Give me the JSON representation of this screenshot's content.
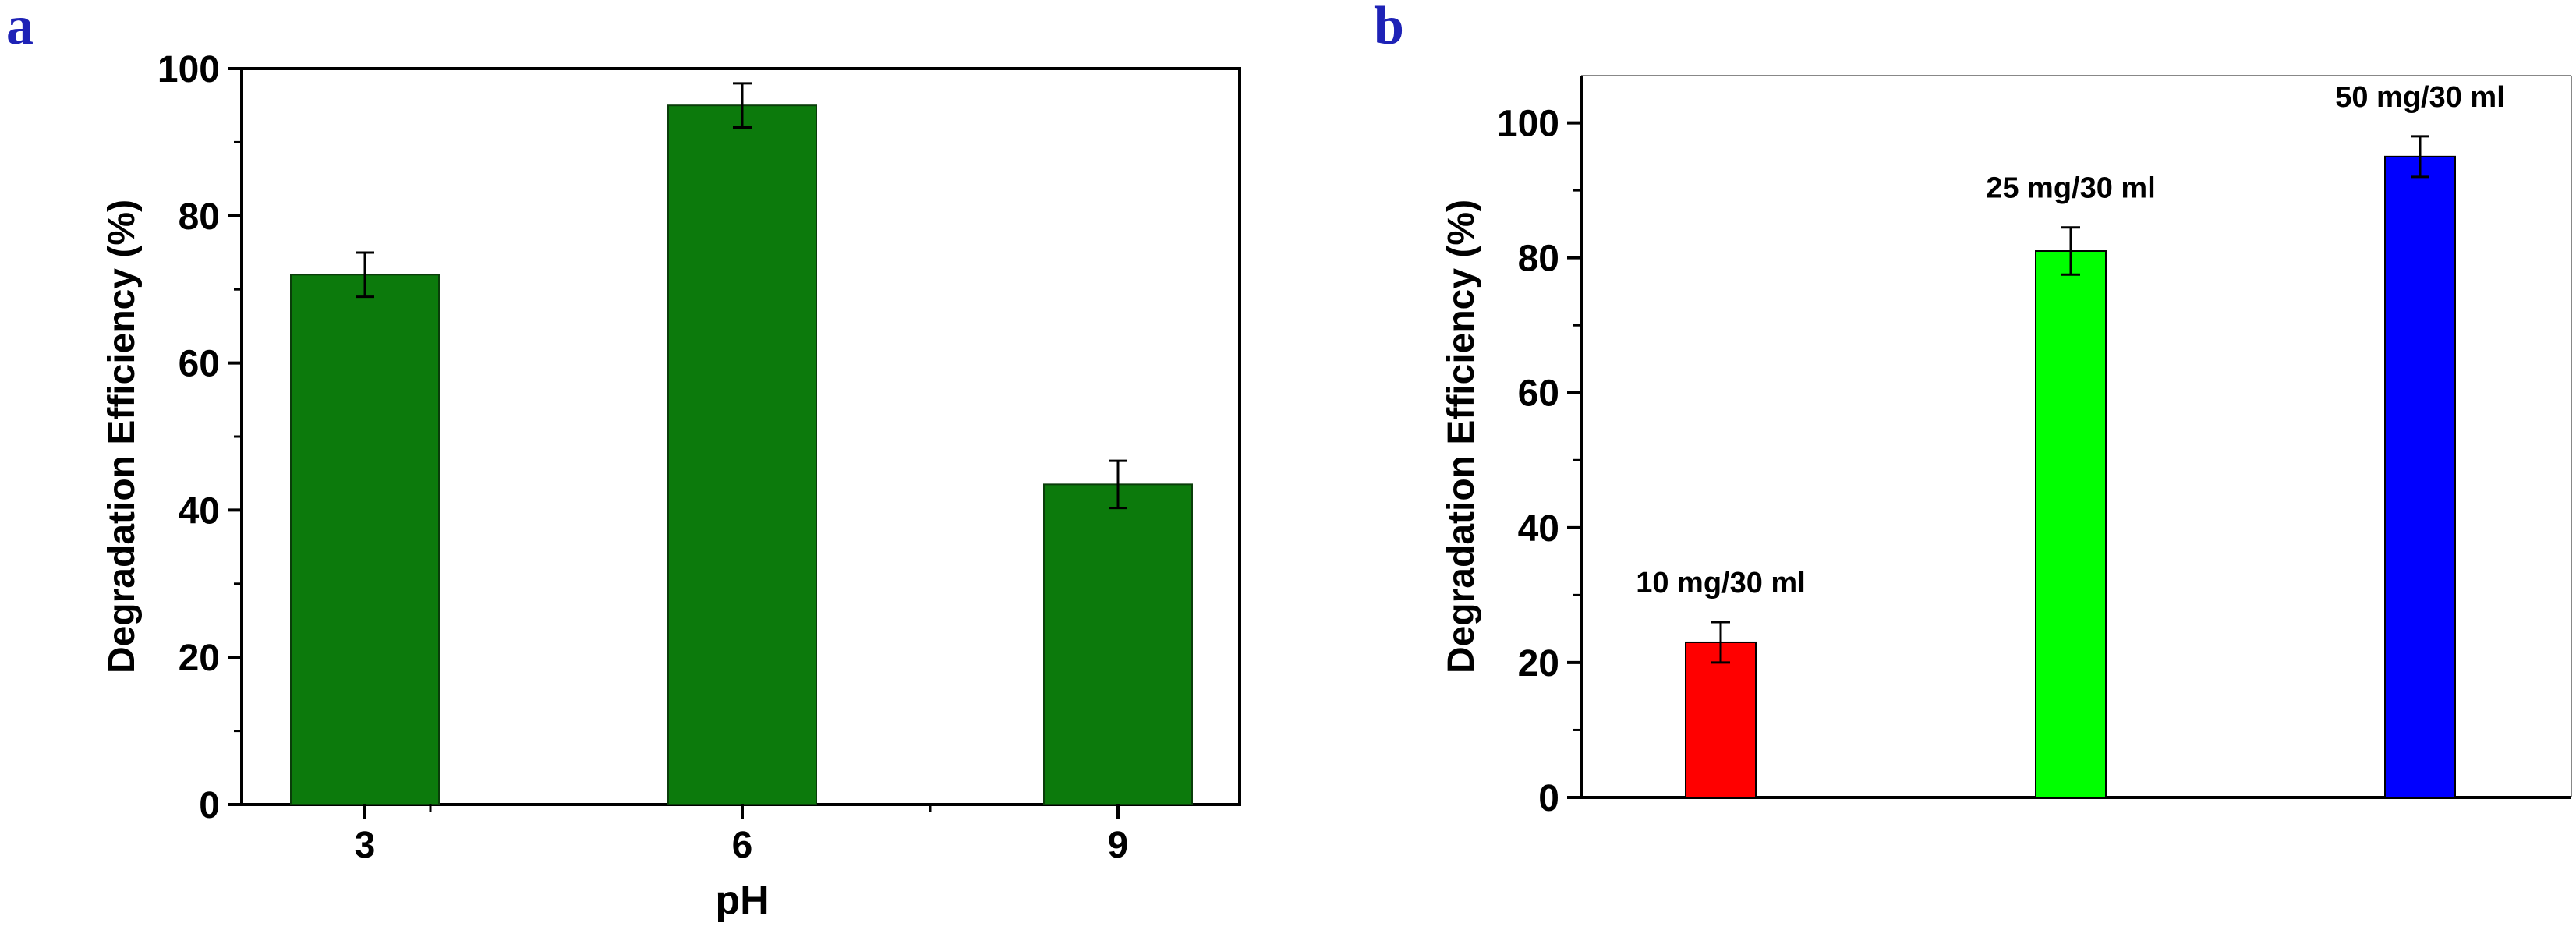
{
  "colors": {
    "panel_label": "#1e22b6",
    "axis": "#000000",
    "bar_green": "#0c7a0c",
    "bar_red": "#ff0000",
    "bar_lime": "#00ff00",
    "bar_blue": "#0000ff"
  },
  "chart_data": [
    {
      "panel": "a",
      "type": "bar",
      "xlabel": "pH",
      "ylabel": "Degradation Efficiency (%)",
      "ylim": [
        0,
        100
      ],
      "yticks": [
        "0",
        "20",
        "40",
        "60",
        "80",
        "100"
      ],
      "categories": [
        "3",
        "6",
        "9"
      ],
      "values": [
        72,
        95,
        43.5
      ],
      "errors": [
        3,
        3,
        3.2
      ],
      "colors": [
        "#0c7a0c",
        "#0c7a0c",
        "#0c7a0c"
      ],
      "bar_labels": []
    },
    {
      "panel": "b",
      "type": "bar",
      "xlabel": "",
      "ylabel": "Degradation Efficiency (%)",
      "ylim": [
        0,
        107
      ],
      "yticks": [
        "0",
        "20",
        "40",
        "60",
        "80",
        "100"
      ],
      "categories": [
        "10 mg/30 ml",
        "25 mg/30 ml",
        "50 mg/30 ml"
      ],
      "values": [
        23,
        81,
        95
      ],
      "errors": [
        3,
        3.5,
        3
      ],
      "colors": [
        "#ff0000",
        "#00ff00",
        "#0000ff"
      ],
      "bar_labels": [
        "10 mg/30 ml",
        "25 mg/30 ml",
        "50 mg/30 ml"
      ]
    }
  ]
}
